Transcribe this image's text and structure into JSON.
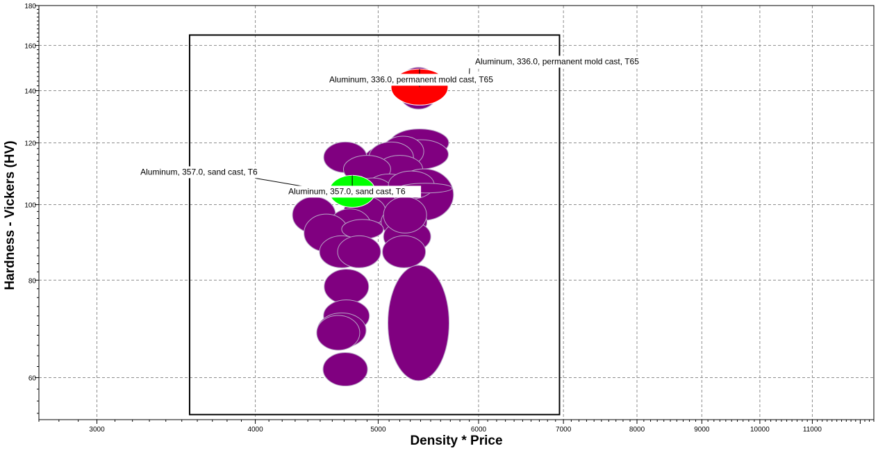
{
  "chart_data": {
    "type": "scatter",
    "title": "",
    "xlabel": "Density * Price",
    "ylabel": "Hardness - Vickers (HV)",
    "x_scale": "log",
    "y_scale": "log",
    "xlim": [
      2700,
      12300
    ],
    "ylim": [
      53,
      180
    ],
    "x_ticks": [
      3000,
      4000,
      5000,
      6000,
      7000,
      8000,
      9000,
      10000,
      11000
    ],
    "y_ticks": [
      60,
      80,
      100,
      120,
      140,
      160,
      180
    ],
    "grid": true,
    "selection_box": {
      "x": [
        3550,
        6950
      ],
      "y": [
        53.8,
        165
      ]
    },
    "bubble_fill": "#800080",
    "bubbles": [
      {
        "x": 5380,
        "y": 141,
        "rx": 30,
        "ry": 30,
        "color": "#800080"
      },
      {
        "x": 5390,
        "y": 120,
        "rx": 42,
        "ry": 20,
        "color": "#800080"
      },
      {
        "x": 5400,
        "y": 116,
        "rx": 40,
        "ry": 21,
        "color": "#800080"
      },
      {
        "x": 5230,
        "y": 117,
        "rx": 30,
        "ry": 22,
        "color": "#800080"
      },
      {
        "x": 5050,
        "y": 114,
        "rx": 28,
        "ry": 20,
        "color": "#800080"
      },
      {
        "x": 5120,
        "y": 115,
        "rx": 32,
        "ry": 22,
        "color": "#800080"
      },
      {
        "x": 4710,
        "y": 115,
        "rx": 31,
        "ry": 22,
        "color": "#800080"
      },
      {
        "x": 5200,
        "y": 111,
        "rx": 33,
        "ry": 20,
        "color": "#800080"
      },
      {
        "x": 4900,
        "y": 111,
        "rx": 34,
        "ry": 20,
        "color": "#800080"
      },
      {
        "x": 5430,
        "y": 103,
        "rx": 43,
        "ry": 37,
        "color": "#800080"
      },
      {
        "x": 5100,
        "y": 104,
        "rx": 36,
        "ry": 25,
        "color": "#800080"
      },
      {
        "x": 4950,
        "y": 103,
        "rx": 32,
        "ry": 24,
        "color": "#800080"
      },
      {
        "x": 5310,
        "y": 106,
        "rx": 33,
        "ry": 20,
        "color": "#800080"
      },
      {
        "x": 5450,
        "y": 105,
        "rx": 38,
        "ry": 7,
        "color": "#800080"
      },
      {
        "x": 5000,
        "y": 99,
        "rx": 30,
        "ry": 24,
        "color": "#800080"
      },
      {
        "x": 4880,
        "y": 98,
        "rx": 30,
        "ry": 22,
        "color": "#800080"
      },
      {
        "x": 4450,
        "y": 97,
        "rx": 31,
        "ry": 26,
        "color": "#800080"
      },
      {
        "x": 4750,
        "y": 94,
        "rx": 30,
        "ry": 24,
        "color": "#800080"
      },
      {
        "x": 5240,
        "y": 95,
        "rx": 33,
        "ry": 23,
        "color": "#800080"
      },
      {
        "x": 5270,
        "y": 91,
        "rx": 34,
        "ry": 23,
        "color": "#800080"
      },
      {
        "x": 4550,
        "y": 92,
        "rx": 32,
        "ry": 27,
        "color": "#800080"
      },
      {
        "x": 4860,
        "y": 93,
        "rx": 30,
        "ry": 14,
        "color": "#800080"
      },
      {
        "x": 5250,
        "y": 97,
        "rx": 31,
        "ry": 26,
        "color": "#800080"
      },
      {
        "x": 4680,
        "y": 87,
        "rx": 32,
        "ry": 23,
        "color": "#800080"
      },
      {
        "x": 4830,
        "y": 87,
        "rx": 31,
        "ry": 23,
        "color": "#800080"
      },
      {
        "x": 5240,
        "y": 87,
        "rx": 31,
        "ry": 23,
        "color": "#800080"
      },
      {
        "x": 4720,
        "y": 78.5,
        "rx": 32,
        "ry": 25,
        "color": "#800080"
      },
      {
        "x": 4720,
        "y": 72,
        "rx": 33,
        "ry": 23,
        "color": "#800080"
      },
      {
        "x": 4680,
        "y": 69,
        "rx": 35,
        "ry": 25,
        "color": "#800080"
      },
      {
        "x": 4650,
        "y": 68.5,
        "rx": 31,
        "ry": 25,
        "color": "#800080"
      },
      {
        "x": 5380,
        "y": 70.5,
        "rx": 44,
        "ry": 83,
        "color": "#800080"
      },
      {
        "x": 4710,
        "y": 61.5,
        "rx": 32,
        "ry": 24,
        "color": "#800080"
      },
      {
        "x": 5390,
        "y": 141.5,
        "rx": 41,
        "ry": 26,
        "color": "#ff0000",
        "label": "Aluminum, 336.0, permanent mold cast, T65"
      },
      {
        "x": 4770,
        "y": 104,
        "rx": 33,
        "ry": 23,
        "color": "#00ff00",
        "label": "Aluminum, 357.0, sand cast, T6"
      }
    ],
    "annotations": [
      {
        "text": "Aluminum, 336.0, permanent mold cast, T65"
      },
      {
        "text": "Aluminum, 336.0, permanent mold cast, T65"
      },
      {
        "text": "Aluminum, 357.0, sand cast, T6"
      },
      {
        "text": "Aluminum, 357.0, sand cast, T6"
      }
    ]
  }
}
